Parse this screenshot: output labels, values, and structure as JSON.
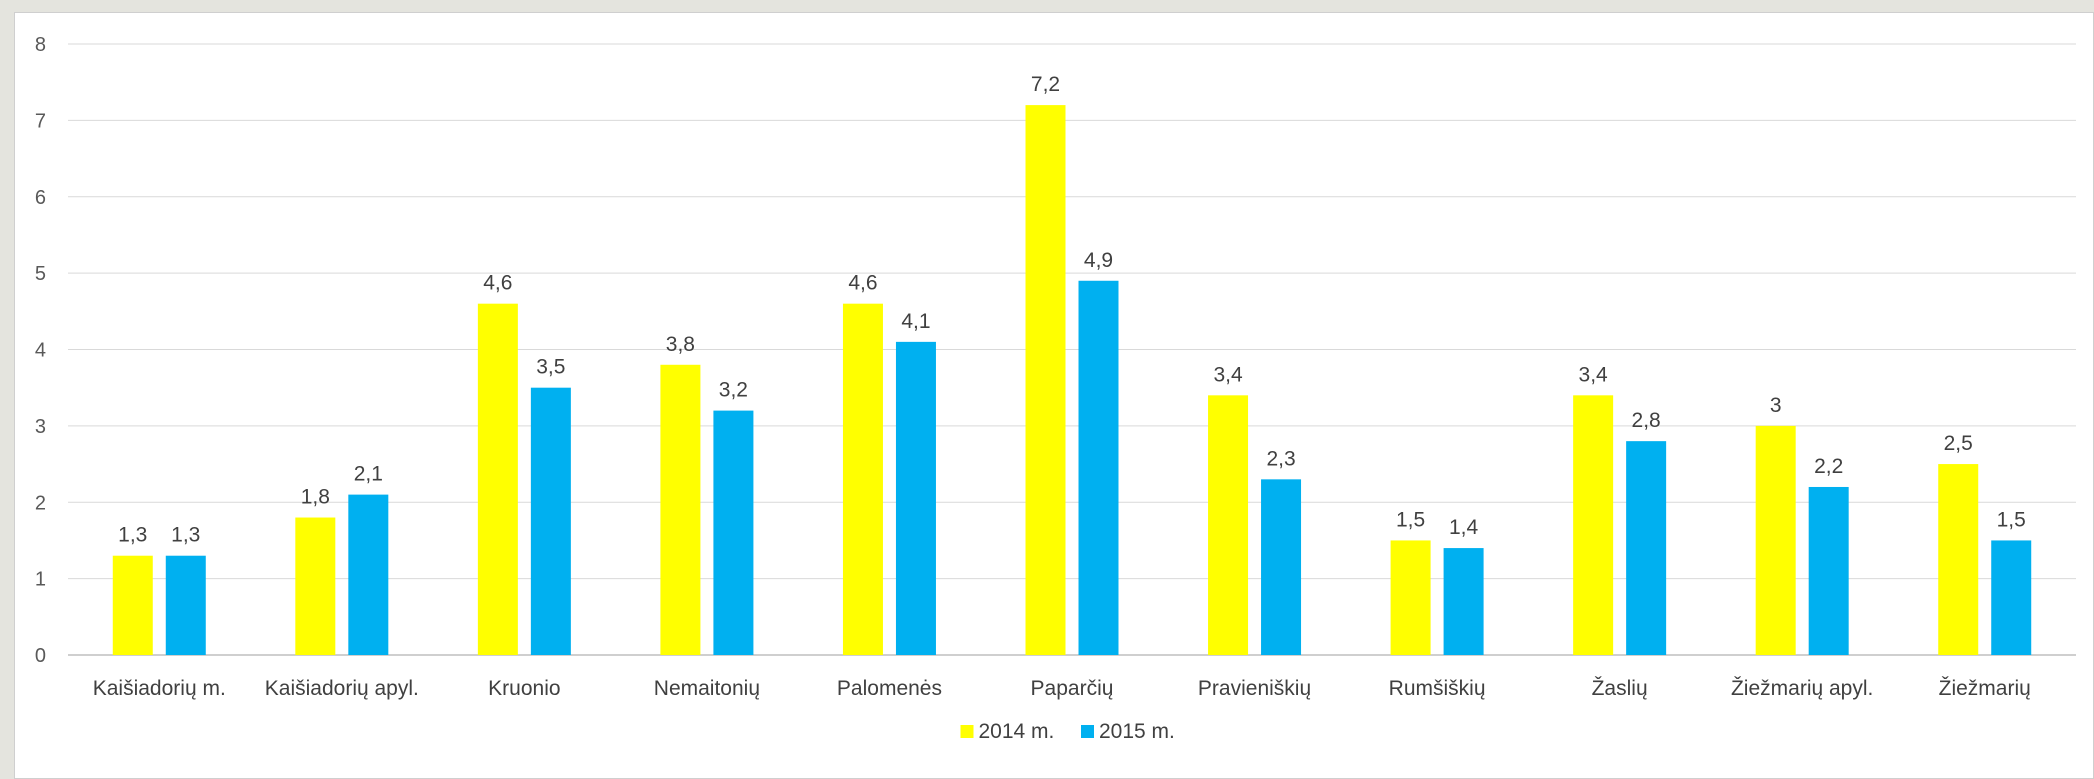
{
  "chart_data": {
    "type": "bar",
    "categories": [
      "Kaišiadorių m.",
      "Kaišiadorių apyl.",
      "Kruonio",
      "Nemaitonių",
      "Palomenės",
      "Paparčių",
      "Pravieniškių",
      "Rumšiškių",
      "Žaslių",
      "Žiežmarių apyl.",
      "Žiežmarių"
    ],
    "series": [
      {
        "name": "2014 m.",
        "color": "#ffff00",
        "values": [
          1.3,
          1.8,
          4.6,
          3.8,
          4.6,
          7.2,
          3.4,
          1.5,
          3.4,
          3,
          2.5
        ],
        "labels": [
          "1,3",
          "1,8",
          "4,6",
          "3,8",
          "4,6",
          "7,2",
          "3,4",
          "1,5",
          "3,4",
          "3",
          "2,5"
        ]
      },
      {
        "name": "2015 m.",
        "color": "#00b0f0",
        "values": [
          1.3,
          2.1,
          3.5,
          3.2,
          4.1,
          4.9,
          2.3,
          1.4,
          2.8,
          2.2,
          1.5
        ],
        "labels": [
          "1,3",
          "2,1",
          "3,5",
          "3,2",
          "4,1",
          "4,9",
          "2,3",
          "1,4",
          "2,8",
          "2,2",
          "1,5"
        ]
      }
    ],
    "ylim": [
      0,
      8
    ],
    "yticks": [
      "0",
      "1",
      "2",
      "3",
      "4",
      "5",
      "6",
      "7",
      "8"
    ],
    "grid": true,
    "legend_position": "bottom"
  }
}
